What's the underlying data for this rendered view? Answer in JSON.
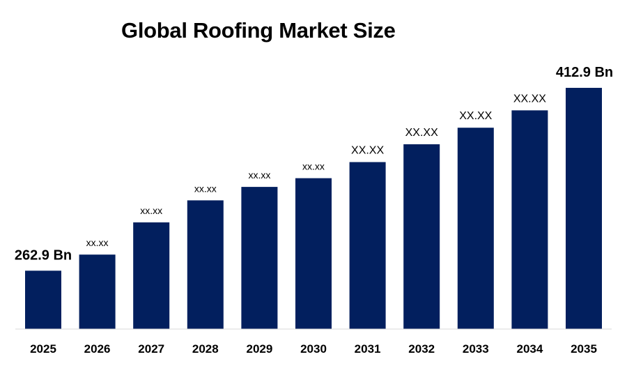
{
  "chart_data": {
    "type": "bar",
    "title": "Global Roofing Market Size",
    "xlabel": "",
    "ylabel": "",
    "categories": [
      "2025",
      "2026",
      "2027",
      "2028",
      "2029",
      "2030",
      "2031",
      "2032",
      "2033",
      "2034",
      "2035"
    ],
    "values": [
      262.9,
      276.1,
      302.5,
      320.6,
      331.6,
      338.8,
      352.0,
      366.6,
      380.2,
      394.4,
      412.9
    ],
    "value_labels": [
      "262.9 Bn",
      "xx.xx",
      "xx.xx",
      "xx.xx",
      "xx.xx",
      "xx.xx",
      "XX.XX",
      "XX.XX",
      "XX.XX",
      "XX.XX",
      "412.9 Bn"
    ],
    "ylim": [
      215,
      412.9
    ],
    "grid": false,
    "legend": "none",
    "bar_color": "#021F5E"
  }
}
